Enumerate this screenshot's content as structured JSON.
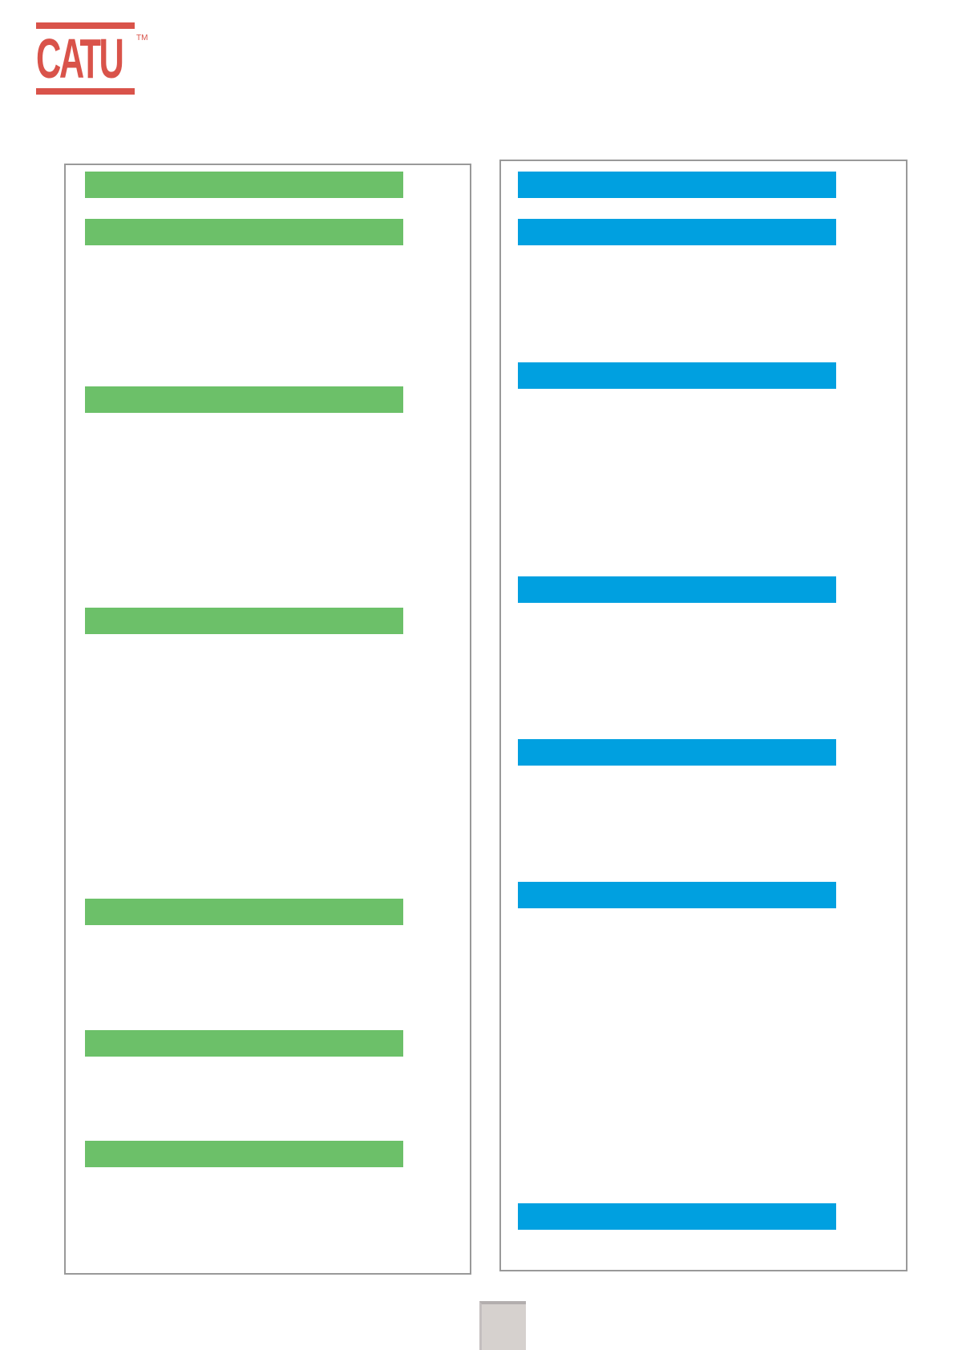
{
  "logo": {
    "text": "CATU",
    "trademark": "TM",
    "color": "#d9534a"
  },
  "colors": {
    "left_accent": "#6cc069",
    "right_accent": "#00a0e0",
    "frame": "#999999",
    "tab": "#d6d1ce"
  },
  "left_column": {
    "bars": [
      {
        "label": ""
      },
      {
        "label": ""
      },
      {
        "label": ""
      },
      {
        "label": ""
      },
      {
        "label": ""
      },
      {
        "label": ""
      },
      {
        "label": ""
      }
    ]
  },
  "right_column": {
    "bars": [
      {
        "label": ""
      },
      {
        "label": ""
      },
      {
        "label": ""
      },
      {
        "label": ""
      },
      {
        "label": ""
      },
      {
        "label": ""
      },
      {
        "label": ""
      }
    ]
  }
}
